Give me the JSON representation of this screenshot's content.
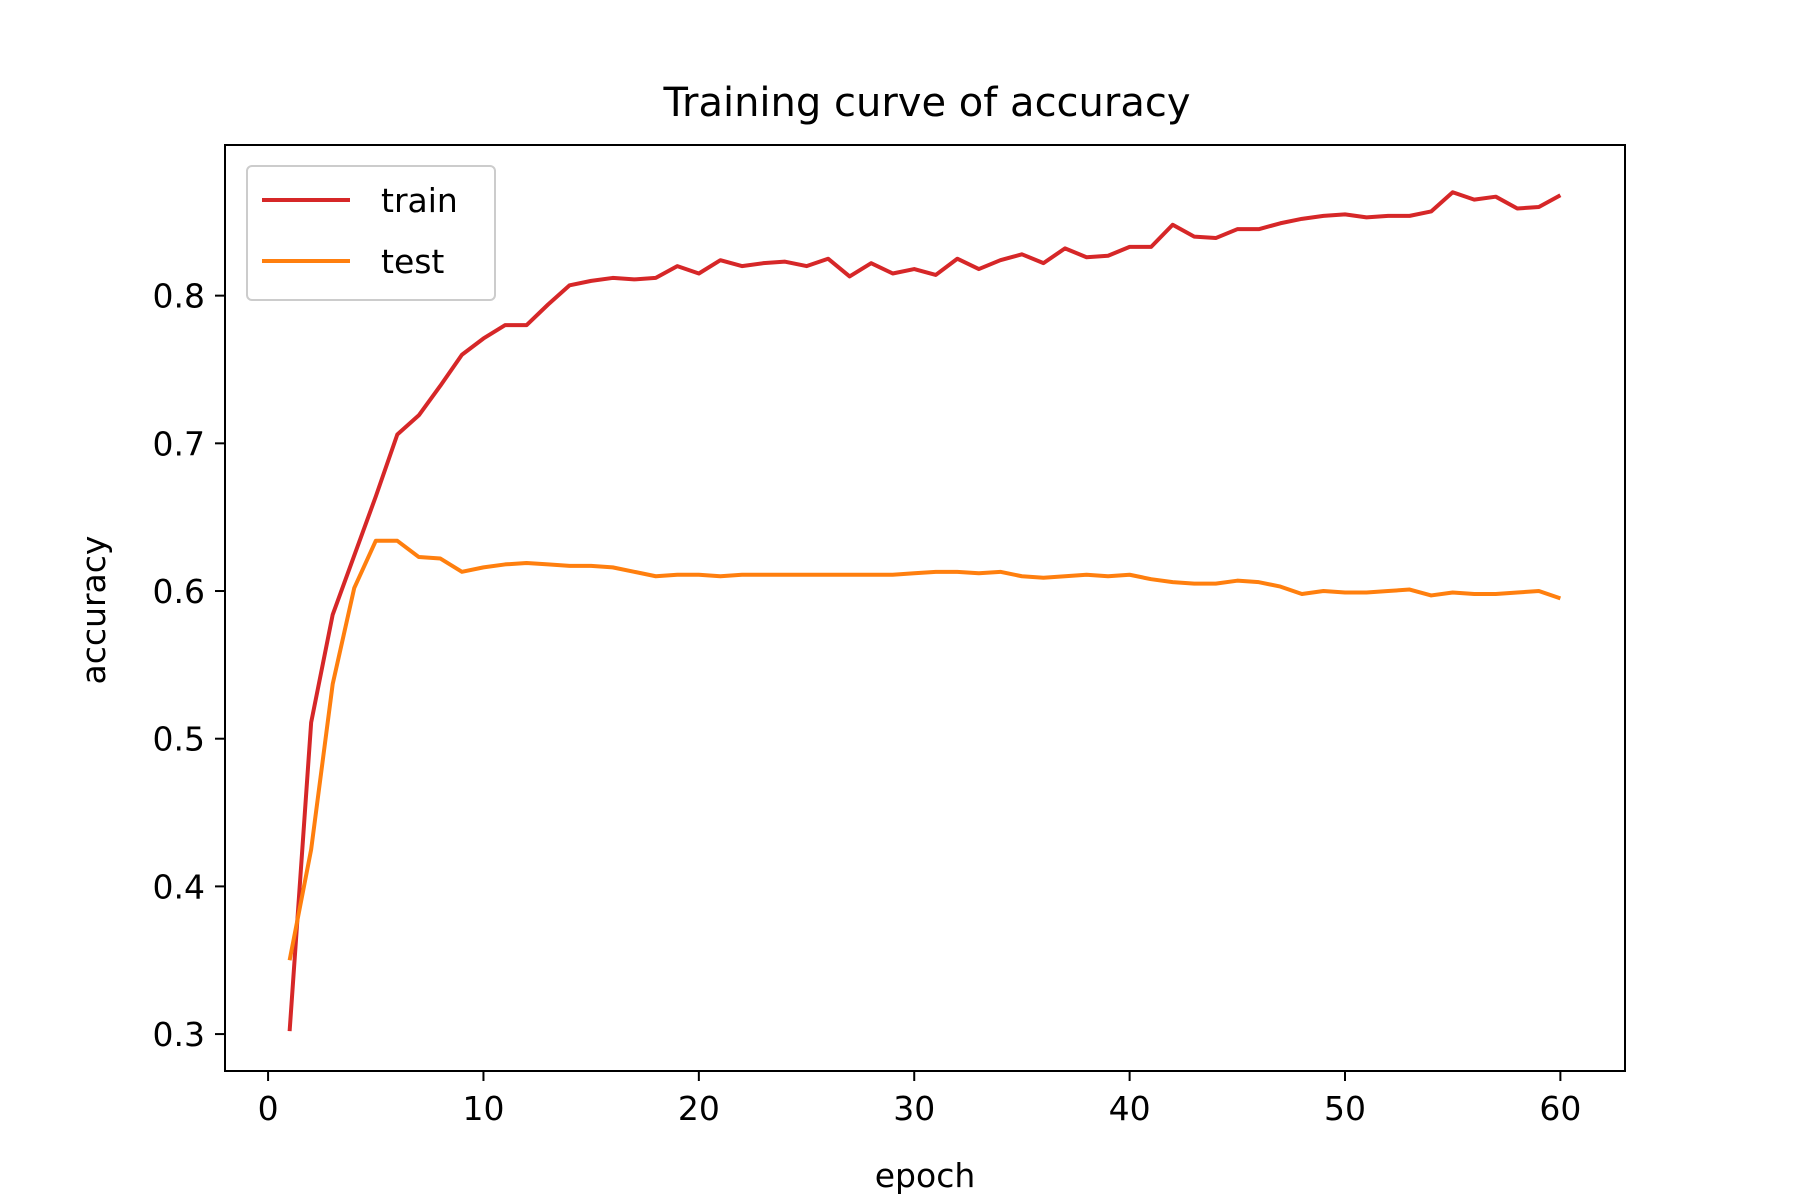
{
  "chart_data": {
    "type": "line",
    "title": "Training curve of accuracy",
    "xlabel": "epoch",
    "ylabel": "accuracy",
    "xlim": [
      -2,
      63
    ],
    "ylim": [
      0.275,
      0.902
    ],
    "xticks": [
      0,
      10,
      20,
      30,
      40,
      50,
      60
    ],
    "yticks": [
      0.3,
      0.4,
      0.5,
      0.6,
      0.7,
      0.8
    ],
    "ytick_labels": [
      "0.3",
      "0.4",
      "0.5",
      "0.6",
      "0.7",
      "0.8"
    ],
    "grid": false,
    "legend_position": "upper-left",
    "x": [
      1,
      2,
      3,
      4,
      5,
      6,
      7,
      8,
      9,
      10,
      11,
      12,
      13,
      14,
      15,
      16,
      17,
      18,
      19,
      20,
      21,
      22,
      23,
      24,
      25,
      26,
      27,
      28,
      29,
      30,
      31,
      32,
      33,
      34,
      35,
      36,
      37,
      38,
      39,
      40,
      41,
      42,
      43,
      44,
      45,
      46,
      47,
      48,
      49,
      50,
      51,
      52,
      53,
      54,
      55,
      56,
      57,
      58,
      59,
      60
    ],
    "series": [
      {
        "name": "train",
        "color": "#d62728",
        "values": [
          0.302,
          0.511,
          0.584,
          0.624,
          0.664,
          0.706,
          0.719,
          0.739,
          0.76,
          0.771,
          0.78,
          0.78,
          0.794,
          0.807,
          0.81,
          0.812,
          0.811,
          0.812,
          0.82,
          0.815,
          0.824,
          0.82,
          0.822,
          0.823,
          0.82,
          0.825,
          0.813,
          0.822,
          0.815,
          0.818,
          0.814,
          0.825,
          0.818,
          0.824,
          0.828,
          0.822,
          0.832,
          0.826,
          0.827,
          0.833,
          0.833,
          0.848,
          0.84,
          0.839,
          0.845,
          0.845,
          0.849,
          0.852,
          0.854,
          0.855,
          0.853,
          0.854,
          0.854,
          0.857,
          0.87,
          0.865,
          0.867,
          0.859,
          0.86,
          0.868
        ]
      },
      {
        "name": "test",
        "color": "#ff7f0e",
        "values": [
          0.35,
          0.425,
          0.537,
          0.602,
          0.634,
          0.634,
          0.623,
          0.622,
          0.613,
          0.616,
          0.618,
          0.619,
          0.618,
          0.617,
          0.617,
          0.616,
          0.613,
          0.61,
          0.611,
          0.611,
          0.61,
          0.611,
          0.611,
          0.611,
          0.611,
          0.611,
          0.611,
          0.611,
          0.611,
          0.612,
          0.613,
          0.613,
          0.612,
          0.613,
          0.61,
          0.609,
          0.61,
          0.611,
          0.61,
          0.611,
          0.608,
          0.606,
          0.605,
          0.605,
          0.607,
          0.606,
          0.603,
          0.598,
          0.6,
          0.599,
          0.599,
          0.6,
          0.601,
          0.597,
          0.599,
          0.598,
          0.598,
          0.599,
          0.6,
          0.595
        ]
      }
    ]
  }
}
